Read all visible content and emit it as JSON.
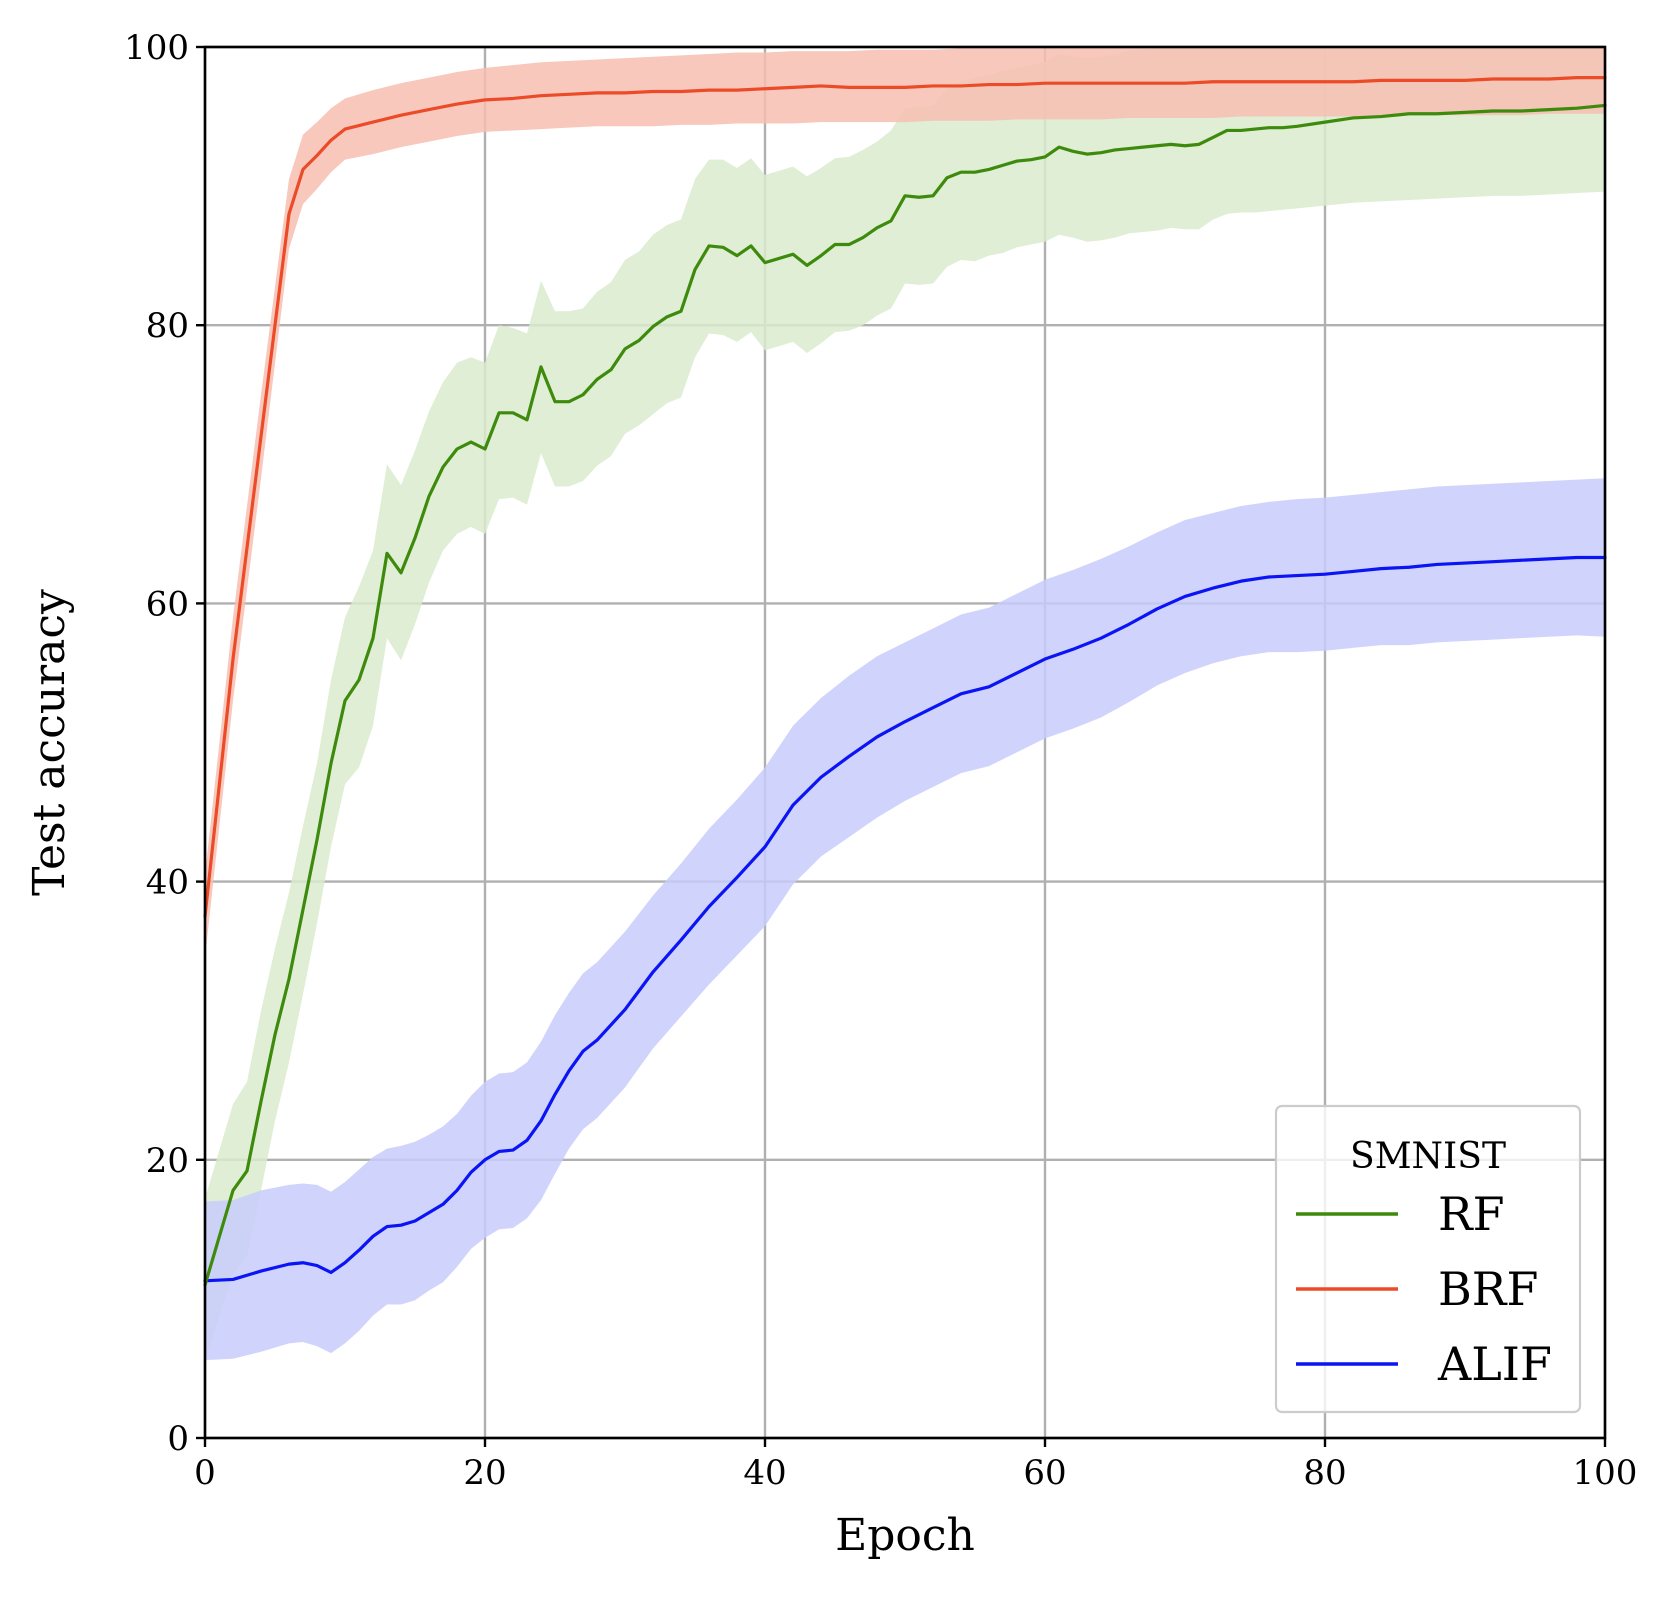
{
  "chart_data": {
    "type": "line",
    "title": "",
    "xlabel": "Epoch",
    "ylabel": "Test accuracy",
    "xlim": [
      0,
      100
    ],
    "ylim": [
      0,
      100
    ],
    "xticks": [
      "0",
      "20",
      "40",
      "60",
      "80",
      "100"
    ],
    "yticks": [
      "0",
      "20",
      "40",
      "60",
      "80",
      "100"
    ],
    "grid": true,
    "legend": {
      "title": "SMNIST",
      "placement": "lower-right"
    },
    "series": [
      {
        "name": "RF",
        "color": "#3e8a0c",
        "band_color": "#d9ebcc",
        "x": [
          0,
          2,
          3,
          4,
          5,
          6,
          7,
          8,
          9,
          10,
          11,
          12,
          13,
          14,
          15,
          16,
          17,
          18,
          19,
          20,
          21,
          22,
          23,
          24,
          25,
          26,
          27,
          28,
          29,
          30,
          31,
          32,
          33,
          34,
          35,
          36,
          37,
          38,
          39,
          40,
          41,
          42,
          43,
          44,
          45,
          46,
          47,
          48,
          49,
          50,
          51,
          52,
          53,
          54,
          55,
          56,
          57,
          58,
          59,
          60,
          61,
          62,
          63,
          64,
          65,
          66,
          67,
          68,
          69,
          70,
          71,
          72,
          73,
          74,
          75,
          76,
          77,
          78,
          80,
          82,
          84,
          86,
          88,
          90,
          92,
          94,
          96,
          98,
          100
        ],
        "values": [
          11.0,
          17.8,
          19.2,
          24.2,
          29,
          33,
          38,
          43,
          48.5,
          53,
          54.5,
          57.5,
          63.6,
          62.2,
          64.7,
          67.7,
          69.8,
          71.1,
          71.6,
          71.1,
          73.7,
          73.7,
          73.2,
          77.0,
          74.5,
          74.5,
          75.0,
          76.1,
          76.8,
          78.3,
          78.9,
          79.9,
          80.6,
          81.0,
          84.0,
          85.7,
          85.6,
          85.0,
          85.7,
          84.5,
          84.8,
          85.1,
          84.3,
          85.0,
          85.8,
          85.8,
          86.3,
          87.0,
          87.5,
          89.3,
          89.2,
          89.3,
          90.6,
          91.0,
          91.0,
          91.2,
          91.5,
          91.8,
          91.9,
          92.1,
          92.8,
          92.5,
          92.3,
          92.4,
          92.6,
          92.7,
          92.8,
          92.9,
          93.0,
          92.9,
          93.0,
          93.5,
          94.0,
          94.0,
          94.1,
          94.2,
          94.2,
          94.3,
          94.6,
          94.9,
          95.0,
          95.2,
          95.2,
          95.3,
          95.4,
          95.4,
          95.5,
          95.6,
          95.8
        ],
        "upper": [
          17.2,
          24,
          25.6,
          30.7,
          35.2,
          39.2,
          44.0,
          48.5,
          54.5,
          59,
          61.2,
          63.8,
          70.0,
          68.5,
          71,
          73.8,
          75.9,
          77.3,
          77.7,
          77.3,
          80.0,
          79.8,
          79.4,
          83.2,
          81.0,
          81.0,
          81.2,
          82.4,
          83.1,
          84.7,
          85.3,
          86.5,
          87.2,
          87.6,
          90.5,
          91.9,
          91.9,
          91.3,
          92.0,
          90.8,
          91.1,
          91.4,
          90.7,
          91.3,
          92.0,
          92.1,
          92.6,
          93.2,
          94.0,
          95.6,
          95.7,
          95.8,
          97.0,
          97.5,
          97.8,
          98.0,
          98.3,
          98.5,
          98.7,
          98.9,
          99.5,
          99.3,
          99.2,
          99.3,
          99.5,
          99.7,
          99.8,
          99.9,
          100,
          100,
          100,
          100,
          100,
          100,
          100,
          100,
          100,
          100,
          100,
          100,
          100,
          100,
          100,
          100,
          100,
          100,
          100,
          100,
          100
        ],
        "lower": [
          5.5,
          11.8,
          13.0,
          17.8,
          22.8,
          27.0,
          31.9,
          37.0,
          42.5,
          47.0,
          48.2,
          51.2,
          57.5,
          55.9,
          58.5,
          61.5,
          63.8,
          65.0,
          65.5,
          65.0,
          67.5,
          67.6,
          67.1,
          70.8,
          68.4,
          68.4,
          68.8,
          69.9,
          70.6,
          72.2,
          72.8,
          73.6,
          74.4,
          74.8,
          77.7,
          79.4,
          79.3,
          78.8,
          79.5,
          78.2,
          78.5,
          78.8,
          78.0,
          78.7,
          79.5,
          79.6,
          80.0,
          80.7,
          81.2,
          83.0,
          82.9,
          83.0,
          84.2,
          84.7,
          84.6,
          85.0,
          85.2,
          85.6,
          85.8,
          86.0,
          86.5,
          86.3,
          86.0,
          86.1,
          86.3,
          86.6,
          86.7,
          86.8,
          87.0,
          86.9,
          86.9,
          87.6,
          88.0,
          88.1,
          88.1,
          88.2,
          88.3,
          88.4,
          88.6,
          88.8,
          88.9,
          89.0,
          89.1,
          89.2,
          89.3,
          89.3,
          89.4,
          89.5,
          89.6
        ]
      },
      {
        "name": "BRF",
        "color": "#ec4b28",
        "band_color": "#f7beb2",
        "x": [
          0,
          2,
          4,
          6,
          7,
          8,
          9,
          10,
          12,
          14,
          16,
          18,
          20,
          22,
          24,
          26,
          28,
          30,
          32,
          34,
          36,
          38,
          40,
          42,
          44,
          46,
          48,
          50,
          52,
          54,
          56,
          58,
          60,
          62,
          64,
          66,
          68,
          70,
          72,
          74,
          76,
          78,
          80,
          82,
          84,
          86,
          88,
          90,
          92,
          94,
          96,
          98,
          100
        ],
        "values": [
          37.5,
          56,
          72,
          88,
          91.2,
          92.2,
          93.3,
          94.1,
          94.6,
          95.1,
          95.5,
          95.9,
          96.2,
          96.3,
          96.5,
          96.6,
          96.7,
          96.7,
          96.8,
          96.8,
          96.9,
          96.9,
          97.0,
          97.1,
          97.2,
          97.1,
          97.1,
          97.1,
          97.2,
          97.2,
          97.3,
          97.3,
          97.4,
          97.4,
          97.4,
          97.4,
          97.4,
          97.4,
          97.5,
          97.5,
          97.5,
          97.5,
          97.5,
          97.5,
          97.6,
          97.6,
          97.6,
          97.6,
          97.7,
          97.7,
          97.7,
          97.8,
          97.8
        ],
        "upper": [
          40.5,
          59,
          75,
          90.5,
          93.7,
          94.6,
          95.6,
          96.3,
          96.9,
          97.4,
          97.8,
          98.2,
          98.5,
          98.7,
          98.9,
          99.0,
          99.1,
          99.2,
          99.3,
          99.4,
          99.5,
          99.6,
          99.6,
          99.7,
          99.7,
          99.7,
          99.8,
          99.8,
          99.8,
          99.9,
          99.9,
          99.9,
          99.9,
          100,
          100,
          100,
          100,
          100,
          100,
          100,
          100,
          100,
          100,
          100,
          100,
          100,
          100,
          100,
          100,
          100,
          100,
          100,
          100
        ],
        "lower": [
          34.5,
          53,
          69,
          85.5,
          88.7,
          89.8,
          91.0,
          91.9,
          92.3,
          92.8,
          93.2,
          93.6,
          93.9,
          94.0,
          94.1,
          94.2,
          94.3,
          94.3,
          94.3,
          94.4,
          94.4,
          94.5,
          94.5,
          94.5,
          94.6,
          94.6,
          94.6,
          94.6,
          94.7,
          94.7,
          94.7,
          94.8,
          94.8,
          94.8,
          94.8,
          94.9,
          94.9,
          94.9,
          94.9,
          95.0,
          95.0,
          95.0,
          95.0,
          95.0,
          95.0,
          95.1,
          95.1,
          95.1,
          95.1,
          95.1,
          95.2,
          95.2,
          95.2
        ]
      },
      {
        "name": "ALIF",
        "color": "#0a14f5",
        "band_color": "#c8ccfb",
        "x": [
          0,
          2,
          4,
          6,
          7,
          8,
          9,
          10,
          11,
          12,
          13,
          14,
          15,
          16,
          17,
          18,
          19,
          20,
          21,
          22,
          23,
          24,
          25,
          26,
          27,
          28,
          30,
          32,
          34,
          36,
          38,
          40,
          42,
          44,
          46,
          48,
          50,
          52,
          54,
          56,
          58,
          60,
          62,
          64,
          66,
          68,
          70,
          72,
          74,
          76,
          78,
          80,
          82,
          84,
          86,
          88,
          90,
          92,
          94,
          96,
          98,
          100
        ],
        "values": [
          11.3,
          11.4,
          12.0,
          12.5,
          12.6,
          12.4,
          11.9,
          12.6,
          13.5,
          14.5,
          15.2,
          15.3,
          15.6,
          16.2,
          16.8,
          17.8,
          19.1,
          20.0,
          20.6,
          20.7,
          21.4,
          22.8,
          24.7,
          26.4,
          27.8,
          28.6,
          30.8,
          33.5,
          35.8,
          38.2,
          40.3,
          42.5,
          45.5,
          47.5,
          49.0,
          50.4,
          51.5,
          52.5,
          53.5,
          54.0,
          55.0,
          56.0,
          56.7,
          57.5,
          58.5,
          59.6,
          60.5,
          61.1,
          61.6,
          61.9,
          62.0,
          62.1,
          62.3,
          62.5,
          62.6,
          62.8,
          62.9,
          63.0,
          63.1,
          63.2,
          63.3,
          63.3
        ],
        "upper": [
          17.0,
          17.1,
          17.8,
          18.2,
          18.3,
          18.2,
          17.7,
          18.4,
          19.3,
          20.2,
          20.8,
          21.0,
          21.3,
          21.8,
          22.4,
          23.3,
          24.6,
          25.6,
          26.2,
          26.3,
          27.0,
          28.5,
          30.4,
          32.0,
          33.4,
          34.2,
          36.4,
          39.0,
          41.3,
          43.8,
          45.9,
          48.2,
          51.2,
          53.2,
          54.8,
          56.2,
          57.2,
          58.2,
          59.2,
          59.7,
          60.7,
          61.7,
          62.4,
          63.2,
          64.1,
          65.1,
          66.0,
          66.5,
          67.0,
          67.3,
          67.5,
          67.6,
          67.8,
          68.0,
          68.2,
          68.4,
          68.5,
          68.6,
          68.7,
          68.8,
          68.9,
          69.0
        ],
        "lower": [
          5.6,
          5.7,
          6.2,
          6.8,
          6.9,
          6.6,
          6.1,
          6.8,
          7.7,
          8.8,
          9.6,
          9.6,
          9.9,
          10.6,
          11.2,
          12.3,
          13.6,
          14.4,
          15.0,
          15.1,
          15.8,
          17.1,
          19.0,
          20.8,
          22.2,
          23.0,
          25.2,
          28.0,
          30.3,
          32.6,
          34.7,
          36.8,
          39.8,
          41.8,
          43.2,
          44.6,
          45.8,
          46.8,
          47.8,
          48.3,
          49.3,
          50.3,
          51.0,
          51.8,
          52.9,
          54.1,
          55.0,
          55.7,
          56.2,
          56.5,
          56.5,
          56.6,
          56.8,
          57.0,
          57.0,
          57.2,
          57.3,
          57.4,
          57.5,
          57.6,
          57.7,
          57.6
        ]
      }
    ]
  }
}
